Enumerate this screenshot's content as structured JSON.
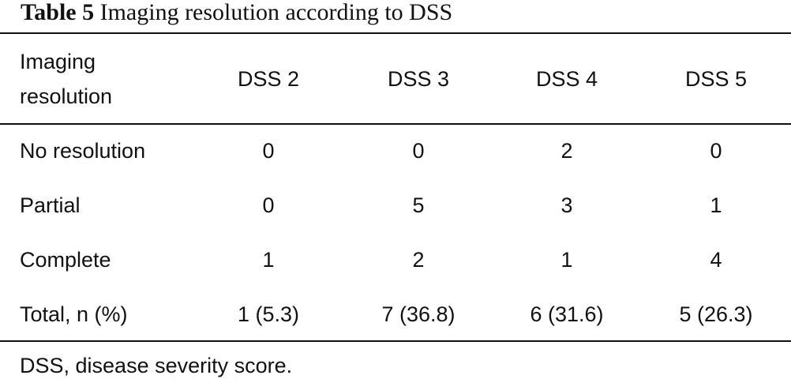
{
  "title": {
    "label": "Table 5",
    "text": "Imaging resolution according to DSS"
  },
  "table": {
    "header": [
      "Imaging resolution",
      "DSS 2",
      "DSS 3",
      "DSS 4",
      "DSS 5"
    ],
    "rows": [
      [
        "No resolution",
        "0",
        "0",
        "2",
        "0"
      ],
      [
        "Partial",
        "0",
        "5",
        "3",
        "1"
      ],
      [
        "Complete",
        "1",
        "2",
        "1",
        "4"
      ],
      [
        "Total, n (%)",
        "1 (5.3)",
        "7 (36.8)",
        "6 (31.6)",
        "5 (26.3)"
      ]
    ]
  },
  "footnote": "DSS, disease severity score."
}
